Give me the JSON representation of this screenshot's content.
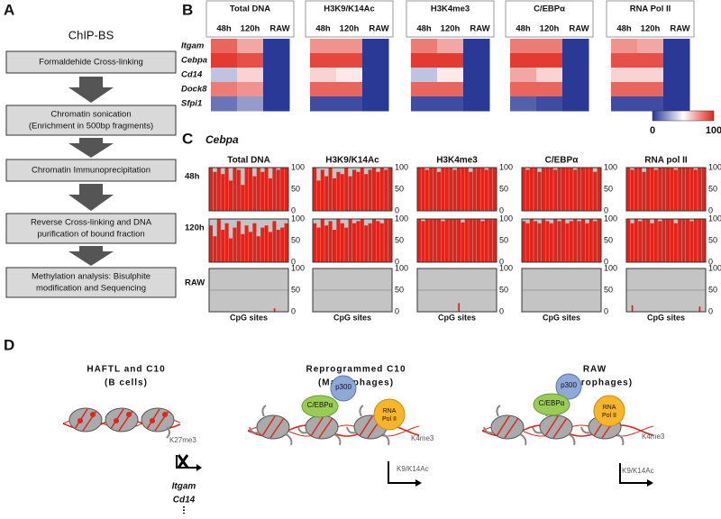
{
  "panel_labels": [
    "A",
    "B",
    "C",
    "D"
  ],
  "flowchart": {
    "title": "ChIP-BS",
    "steps": [
      [
        "Formaldehide Cross-linking"
      ],
      [
        "Chromatin sonication",
        "(Enrichment in 500bp fragments)"
      ],
      [
        "Chromatin Immunoprecipitation"
      ],
      [
        "Reverse Cross-linking and DNA",
        "purification of bound fraction"
      ],
      [
        "Methylation analysis: Bisulphite",
        "modification and Sequencing"
      ]
    ]
  },
  "chart_data": [
    {
      "type": "heatmap",
      "groups": [
        "Total DNA",
        "H3K9/K14Ac",
        "H3K4me3",
        "C/EBPα",
        "RNA Pol II"
      ],
      "columns": [
        "48h",
        "120h",
        "RAW"
      ],
      "rows": [
        "Itgam",
        "Cebpa",
        "Cd14",
        "Dock8",
        "Sfpi1"
      ],
      "colors": [
        "#2a3896",
        "#ffffff",
        "#e0241b"
      ],
      "zlim": [
        0,
        100
      ],
      "zticks": [
        0,
        100
      ],
      "values": [
        [
          [
            85,
            70,
            0
          ],
          [
            95,
            90,
            0
          ],
          [
            35,
            60,
            0
          ],
          [
            80,
            75,
            0
          ],
          [
            15,
            25,
            0
          ]
        ],
        [
          [
            75,
            75,
            0
          ],
          [
            92,
            92,
            0
          ],
          [
            60,
            55,
            0
          ],
          [
            85,
            85,
            0
          ],
          [
            5,
            5,
            0
          ]
        ],
        [
          [
            80,
            70,
            0
          ],
          [
            95,
            95,
            0
          ],
          [
            35,
            55,
            0
          ],
          [
            85,
            85,
            0
          ],
          [
            5,
            5,
            0
          ]
        ],
        [
          [
            80,
            80,
            0
          ],
          [
            95,
            95,
            0
          ],
          [
            70,
            60,
            0
          ],
          [
            85,
            85,
            0
          ],
          [
            10,
            5,
            0
          ]
        ],
        [
          [
            75,
            70,
            0
          ],
          [
            90,
            90,
            0
          ],
          [
            60,
            60,
            0
          ],
          [
            85,
            85,
            0
          ],
          [
            5,
            5,
            0
          ]
        ]
      ]
    },
    {
      "type": "bar-grid",
      "title": "Cebpa",
      "columns": [
        "Total DNA",
        "H3K9/K14Ac",
        "H3K4me3",
        "C/EBPα",
        "RNA pol II"
      ],
      "rows": [
        "48h",
        "120h",
        "RAW"
      ],
      "xlabel": "CpG sites",
      "ylim": [
        0,
        100
      ],
      "yticks": [
        0,
        50,
        100
      ],
      "color": "#e0241b",
      "background": "#c4c4c4",
      "grid": [
        false,
        false,
        true
      ],
      "values": [
        [
          [
            100,
            90,
            100,
            85,
            100,
            70,
            100,
            95,
            60,
            100,
            100,
            80,
            100,
            90,
            100,
            75,
            100,
            95,
            100,
            100
          ],
          [
            85,
            60,
            100,
            75,
            90,
            55,
            80,
            95,
            65,
            85,
            70,
            90,
            60,
            80,
            85,
            70,
            95,
            75,
            80,
            90
          ],
          [
            0,
            0,
            0,
            0,
            0,
            0,
            0,
            0,
            0,
            0,
            0,
            0,
            0,
            0,
            0,
            0,
            8,
            0,
            0,
            0
          ]
        ],
        [
          [
            100,
            70,
            95,
            80,
            100,
            75,
            90,
            85,
            100,
            80,
            95,
            90,
            100,
            85,
            95,
            100,
            90,
            100,
            95,
            100
          ],
          [
            90,
            80,
            100,
            85,
            95,
            75,
            100,
            90,
            80,
            100,
            90,
            95,
            100,
            85,
            90,
            100,
            95,
            90,
            100,
            100
          ],
          [
            0,
            0,
            0,
            0,
            0,
            0,
            0,
            0,
            0,
            0,
            0,
            0,
            0,
            0,
            0,
            0,
            0,
            0,
            0,
            0
          ]
        ],
        [
          [
            100,
            100,
            95,
            100,
            100,
            90,
            100,
            100,
            100,
            95,
            100,
            100,
            100,
            90,
            100,
            100,
            100,
            95,
            100,
            100
          ],
          [
            100,
            95,
            100,
            100,
            100,
            100,
            95,
            100,
            100,
            100,
            100,
            92,
            100,
            100,
            100,
            100,
            95,
            100,
            100,
            100
          ],
          [
            0,
            0,
            0,
            0,
            0,
            0,
            0,
            0,
            0,
            0,
            20,
            0,
            0,
            0,
            0,
            0,
            0,
            0,
            0,
            0
          ]
        ],
        [
          [
            100,
            95,
            100,
            100,
            90,
            100,
            100,
            100,
            95,
            100,
            100,
            100,
            100,
            95,
            100,
            100,
            100,
            100,
            90,
            100
          ],
          [
            95,
            90,
            100,
            95,
            90,
            100,
            95,
            90,
            100,
            95,
            100,
            90,
            95,
            100,
            95,
            100,
            90,
            100,
            95,
            100
          ],
          [
            0,
            0,
            0,
            0,
            0,
            0,
            0,
            0,
            0,
            0,
            0,
            0,
            0,
            0,
            0,
            0,
            0,
            0,
            0,
            0
          ]
        ],
        [
          [
            100,
            95,
            100,
            100,
            90,
            100,
            100,
            95,
            100,
            100,
            100,
            100,
            95,
            100,
            100,
            100,
            100,
            95,
            100,
            100
          ],
          [
            100,
            90,
            100,
            95,
            100,
            100,
            90,
            100,
            95,
            100,
            100,
            100,
            90,
            100,
            100,
            100,
            95,
            100,
            100,
            100
          ],
          [
            0,
            15,
            0,
            0,
            0,
            0,
            0,
            0,
            0,
            0,
            0,
            0,
            0,
            0,
            0,
            0,
            0,
            0,
            12,
            0
          ]
        ]
      ]
    }
  ],
  "diagram": {
    "states": [
      {
        "title": [
          "HAFTL and C10",
          "(B cells)"
        ],
        "marks": [
          "K27me3"
        ],
        "genes": [
          "Itgam",
          "Cd14"
        ]
      },
      {
        "title": [
          "Reprogrammed C10",
          "(Macrophages)"
        ],
        "factors": [
          "p300",
          "C/EBPα",
          "RNA",
          "Pol II"
        ],
        "marks": [
          "K4me3",
          "K9/K14Ac"
        ]
      },
      {
        "title": [
          "RAW",
          "(Macrophages)"
        ],
        "factors": [
          "p300",
          "C/EBPα",
          "RNA",
          "Pol II"
        ],
        "marks": [
          "K4me3",
          "K9/K14Ac"
        ]
      }
    ]
  }
}
